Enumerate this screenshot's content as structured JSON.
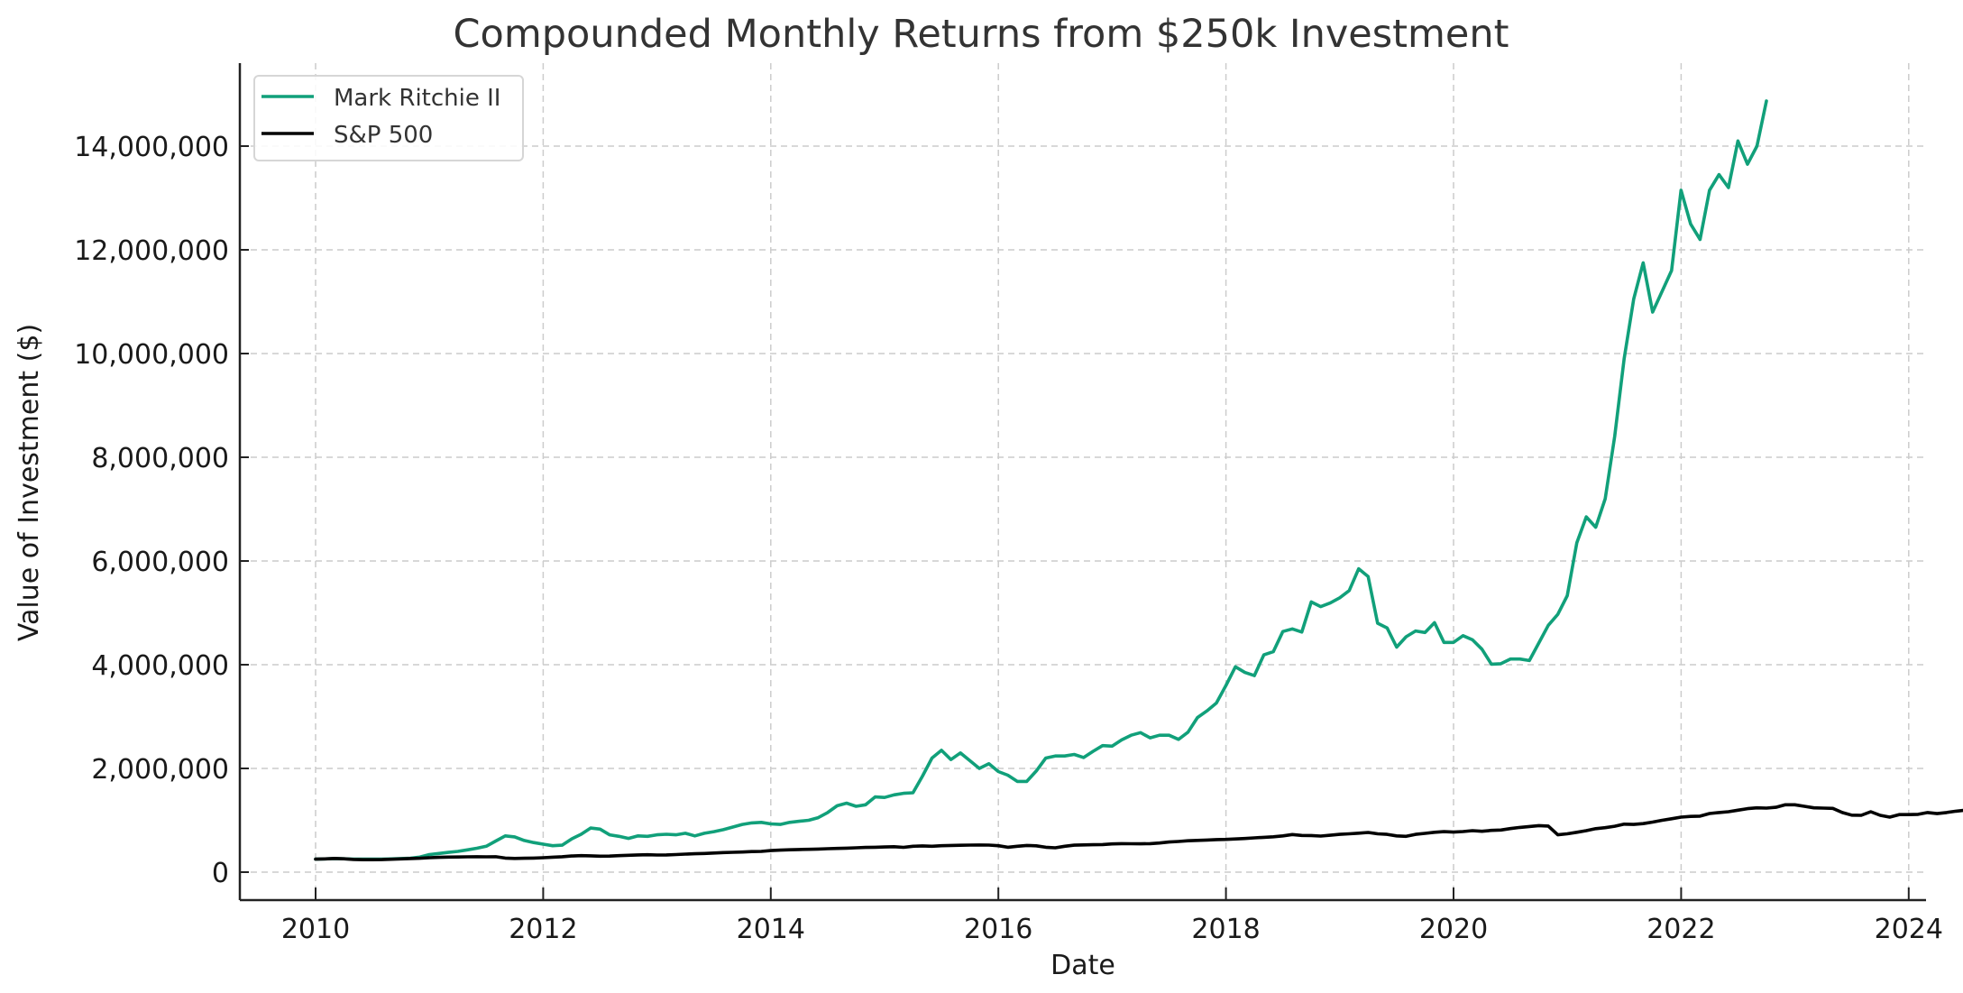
{
  "chart_data": {
    "type": "line",
    "title": "Compounded Monthly Returns from $250k Investment",
    "xlabel": "Date",
    "ylabel": "Value of Investment ($)",
    "xlim": [
      2009.67,
      2024.02
    ],
    "ylim": [
      -500000,
      15600000
    ],
    "x_ticks": [
      "2010",
      "2012",
      "2014",
      "2016",
      "2018",
      "2020",
      "2022",
      "2024"
    ],
    "y_ticks": [
      "0",
      "2,000,000",
      "4,000,000",
      "6,000,000",
      "8,000,000",
      "10,000,000",
      "12,000,000",
      "14,000,000"
    ],
    "grid": true,
    "legend_position": "upper left",
    "series": [
      {
        "name": "Mark Ritchie II",
        "color": "#11a07a",
        "x_start": 2010.0,
        "x_step_years": 0.08333,
        "values": [
          250000,
          255000,
          262000,
          258000,
          252000,
          250000,
          250000,
          252000,
          256000,
          262000,
          270000,
          290000,
          340000,
          360000,
          380000,
          400000,
          430000,
          460000,
          500000,
          600000,
          700000,
          680000,
          610000,
          570000,
          540000,
          510000,
          520000,
          640000,
          730000,
          850000,
          830000,
          720000,
          690000,
          650000,
          700000,
          690000,
          720000,
          730000,
          720000,
          750000,
          700000,
          750000,
          780000,
          820000,
          870000,
          920000,
          950000,
          960000,
          930000,
          920000,
          960000,
          980000,
          1000000,
          1050000,
          1150000,
          1280000,
          1330000,
          1270000,
          1300000,
          1450000,
          1440000,
          1490000,
          1520000,
          1530000,
          1850000,
          2200000,
          2350000,
          2170000,
          2300000,
          2150000,
          2000000,
          2090000,
          1940000,
          1870000,
          1750000,
          1750000,
          1950000,
          2200000,
          2240000,
          2240000,
          2270000,
          2210000,
          2330000,
          2440000,
          2430000,
          2550000,
          2640000,
          2690000,
          2590000,
          2640000,
          2640000,
          2560000,
          2700000,
          2980000,
          3110000,
          3260000,
          3600000,
          3960000,
          3850000,
          3790000,
          4190000,
          4250000,
          4640000,
          4690000,
          4630000,
          5210000,
          5120000,
          5190000,
          5290000,
          5430000,
          5850000,
          5700000,
          4800000,
          4710000,
          4340000,
          4540000,
          4650000,
          4620000,
          4810000,
          4430000,
          4430000,
          4560000,
          4480000,
          4300000,
          4010000,
          4020000,
          4110000,
          4110000,
          4080000,
          4420000,
          4760000,
          4970000,
          5330000,
          6350000,
          6850000,
          6650000,
          7200000,
          8400000,
          9900000,
          11050000,
          11750000,
          10800000,
          11200000,
          11600000,
          13150000,
          12500000,
          12200000,
          13150000,
          13450000,
          13200000,
          14100000,
          13650000,
          14000000,
          14870000
        ]
      },
      {
        "name": "S&P 500",
        "color": "#000000",
        "x_start": 2010.0,
        "x_step_years": 0.08333,
        "values": [
          250000,
          255000,
          265000,
          258000,
          245000,
          240000,
          240000,
          242000,
          248000,
          255000,
          262000,
          268000,
          278000,
          285000,
          290000,
          292000,
          296000,
          298000,
          296000,
          298000,
          272000,
          265000,
          268000,
          272000,
          278000,
          288000,
          298000,
          312000,
          318000,
          314000,
          308000,
          310000,
          318000,
          325000,
          332000,
          336000,
          330000,
          332000,
          340000,
          348000,
          355000,
          360000,
          368000,
          378000,
          382000,
          388000,
          396000,
          400000,
          415000,
          425000,
          432000,
          436000,
          440000,
          446000,
          452000,
          458000,
          462000,
          470000,
          476000,
          480000,
          485000,
          490000,
          478000,
          500000,
          506000,
          500000,
          510000,
          515000,
          518000,
          522000,
          524000,
          522000,
          510000,
          480000,
          500000,
          515000,
          508000,
          480000,
          470000,
          500000,
          520000,
          525000,
          528000,
          532000,
          545000,
          550000,
          548000,
          546000,
          550000,
          562000,
          580000,
          592000,
          605000,
          612000,
          620000,
          628000,
          632000,
          640000,
          648000,
          660000,
          672000,
          682000,
          700000,
          725000,
          708000,
          706000,
          695000,
          712000,
          728000,
          740000,
          752000,
          765000,
          740000,
          728000,
          700000,
          690000,
          728000,
          748000,
          768000,
          780000,
          772000,
          782000,
          800000,
          788000,
          805000,
          812000,
          840000,
          862000,
          880000,
          898000,
          888000,
          720000,
          740000,
          768000,
          800000,
          838000,
          858000,
          885000,
          926000,
          920000,
          935000,
          965000,
          1000000,
          1030000,
          1060000,
          1075000,
          1080000,
          1130000,
          1150000,
          1165000,
          1195000,
          1225000,
          1240000,
          1235000,
          1250000,
          1300000,
          1300000,
          1270000,
          1240000,
          1235000,
          1230000,
          1150000,
          1100000,
          1095000,
          1165000,
          1095000,
          1060000,
          1110000,
          1110000,
          1115000,
          1150000,
          1128000,
          1150000,
          1175000,
          1195000,
          1250000,
          1275000
        ]
      }
    ]
  },
  "legend": {
    "items": [
      {
        "label": "Mark Ritchie II",
        "color": "#11a07a"
      },
      {
        "label": "S&P 500",
        "color": "#000000"
      }
    ]
  }
}
